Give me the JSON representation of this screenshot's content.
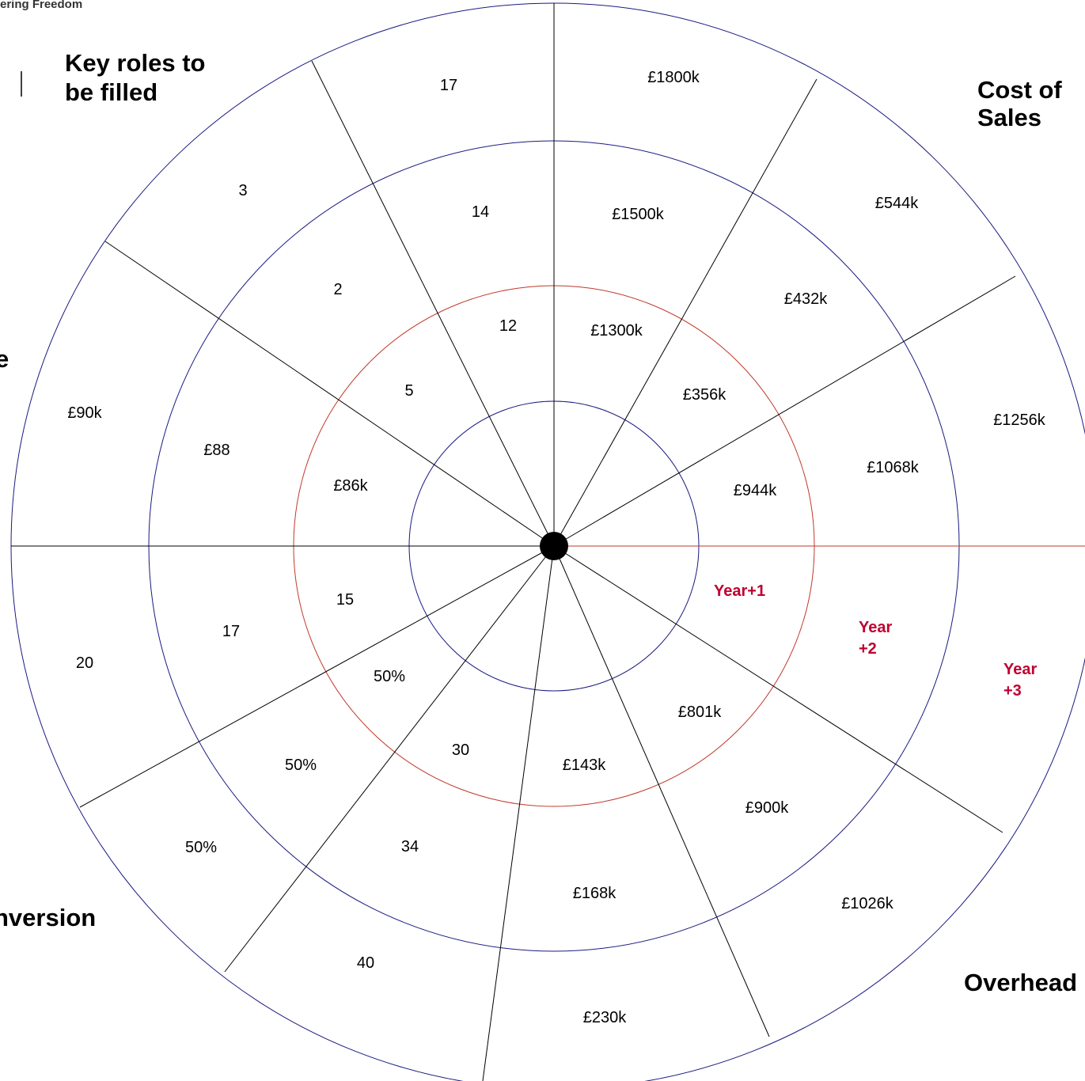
{
  "brand": "ering Freedom",
  "headings": {
    "key_roles": [
      "Key roles to",
      "be filled"
    ],
    "cost_of_sales": [
      "Cost of",
      "Sales"
    ],
    "left_partial": "e",
    "conversion_partial": "nversion",
    "overhead": "Overhead"
  },
  "year_labels": {
    "y1": [
      "Year+1"
    ],
    "y2": [
      "Year",
      "+2"
    ],
    "y3": [
      "Year",
      "+3"
    ]
  },
  "values": {
    "key_roles": [
      "12",
      "14",
      "17"
    ],
    "revenue": [
      "£1300k",
      "£1500k",
      "£1800k"
    ],
    "gross_margin": [
      "£356k",
      "£432k",
      "£544k"
    ],
    "cost_of_sales": [
      "£944k",
      "£1068k",
      "£1256k"
    ],
    "overhead": [
      "£801k",
      "£900k",
      "£1026k"
    ],
    "net_profit": [
      "£143k",
      "£168k",
      "£230k"
    ],
    "customers": [
      "30",
      "34",
      "40"
    ],
    "conversion": [
      "50%",
      "50%",
      "50%"
    ],
    "leads": [
      "15",
      "17",
      "20"
    ],
    "avg_value": [
      "£86k",
      "£88",
      "£90k"
    ],
    "staff": [
      "5",
      "2",
      "3"
    ]
  },
  "colors": {
    "ring_blue": "#1a1a80",
    "ring_red": "#c0392b",
    "spoke": "#000000",
    "year_text": "#c00030"
  }
}
